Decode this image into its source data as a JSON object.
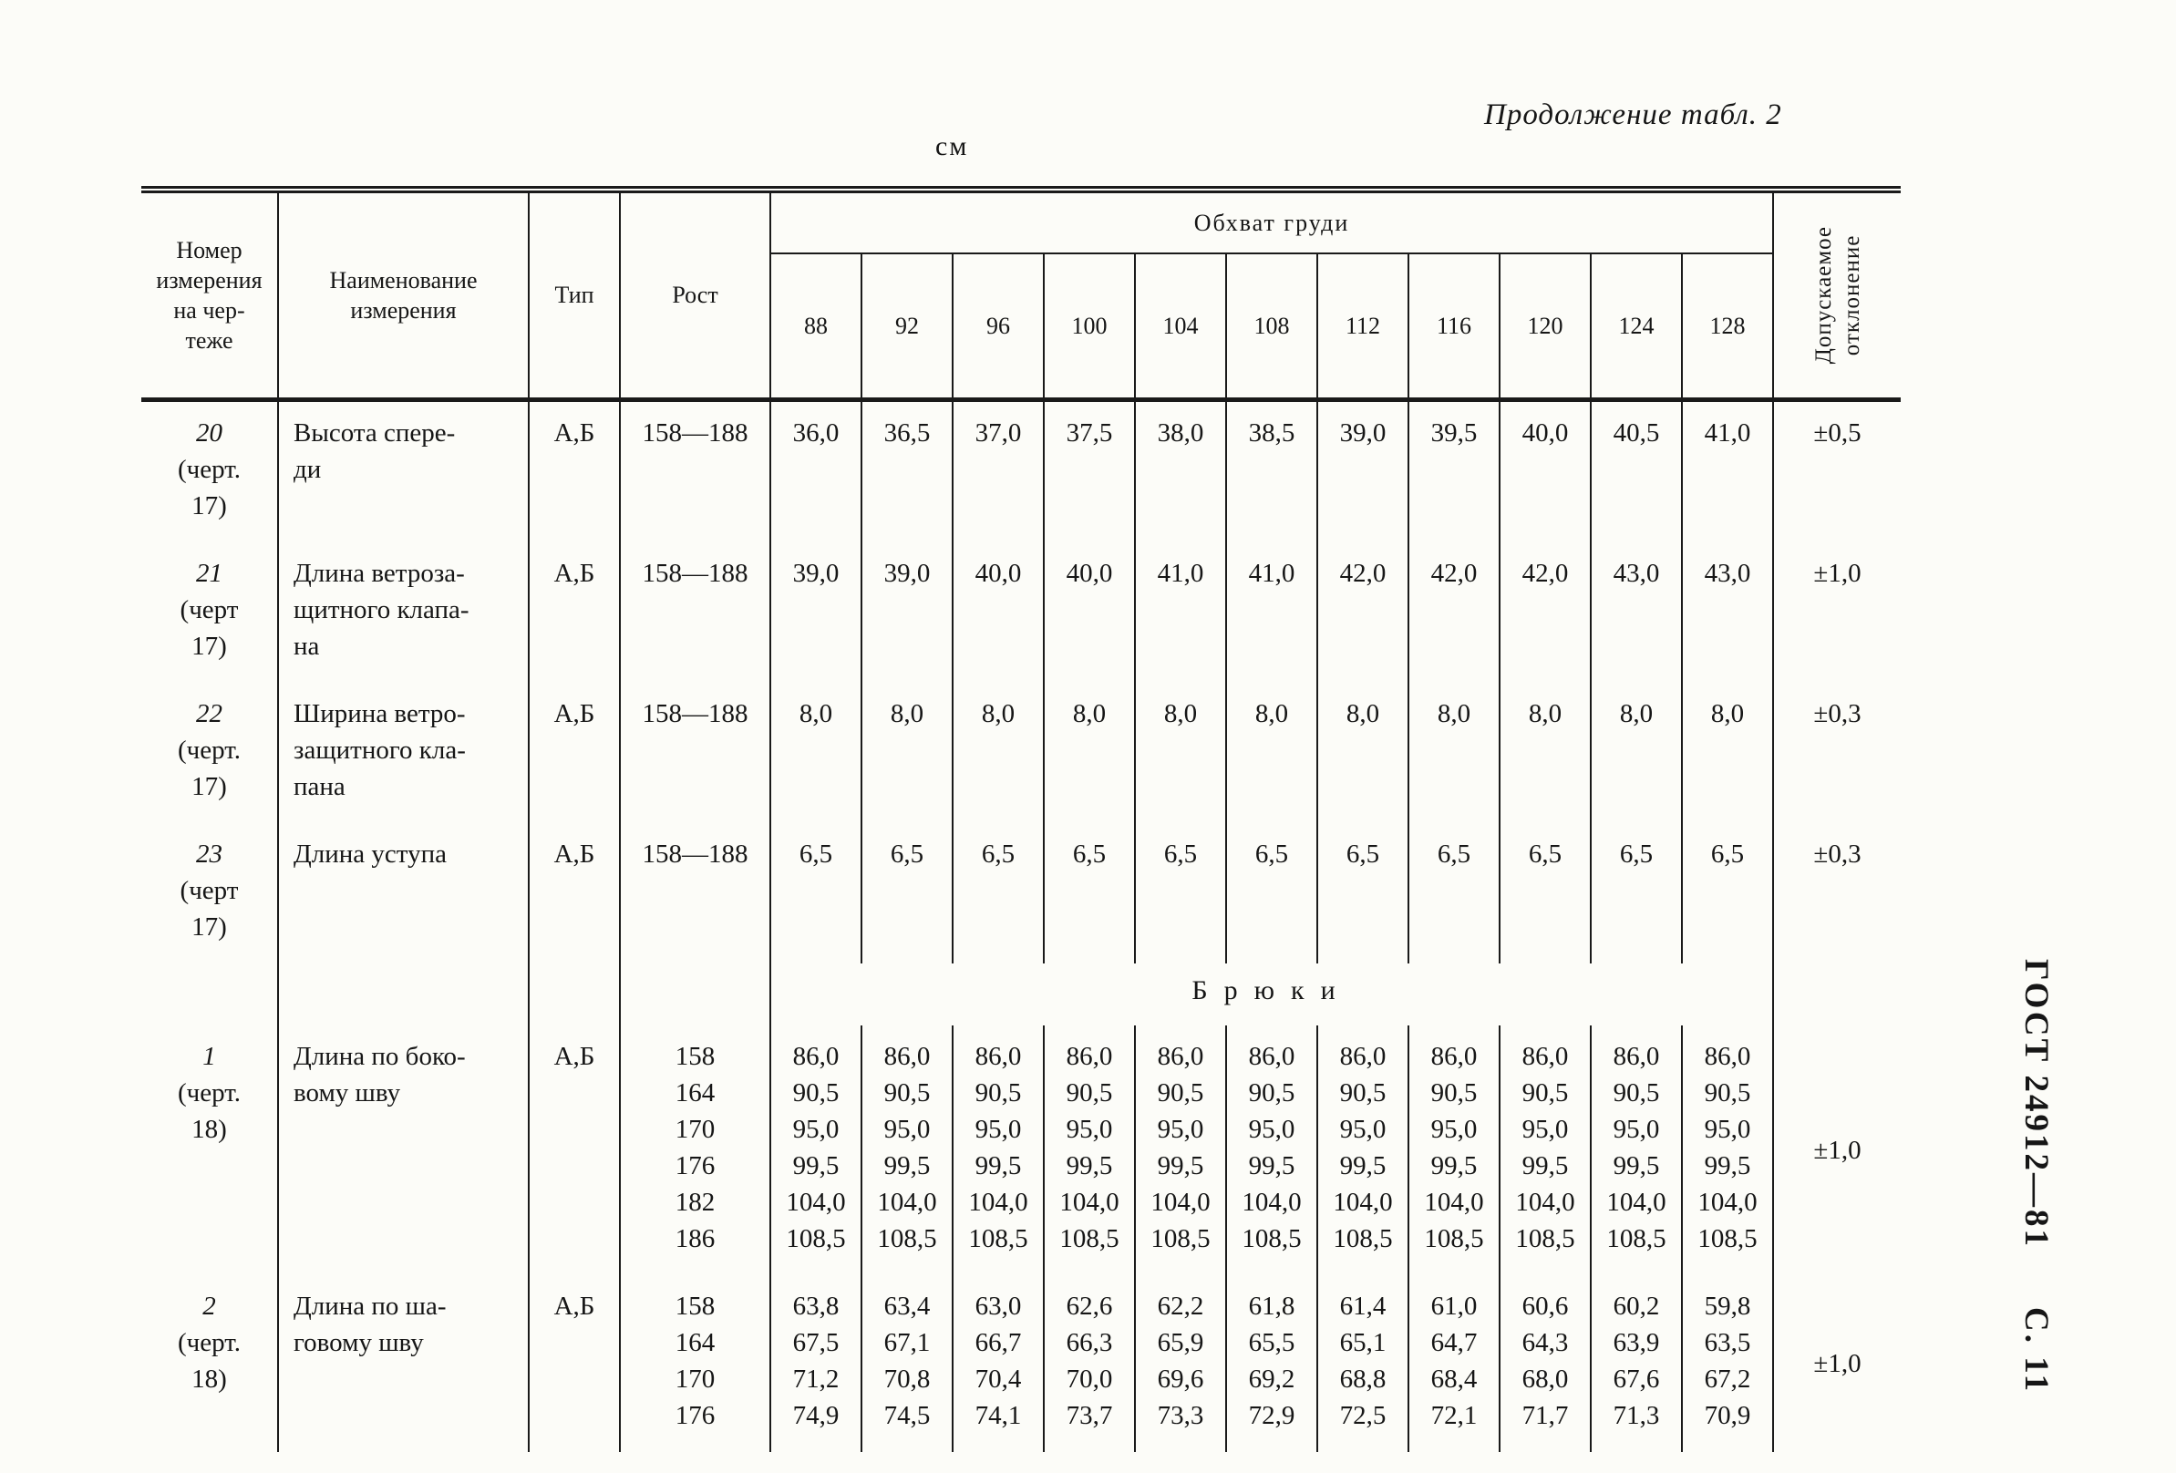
{
  "page": {
    "continuation": "Продолжение табл. 2",
    "units": "см",
    "standard": "ГОСТ 24912—81",
    "page_num": "С. 11"
  },
  "table": {
    "headers": {
      "num": "Номер\nизмерения\nна чер-\nтеже",
      "name": "Наименование\nизмерения",
      "type": "Тип",
      "rost": "Рост",
      "chest_group": "Обхват груди",
      "chest_sizes": [
        "88",
        "92",
        "96",
        "100",
        "104",
        "108",
        "112",
        "116",
        "120",
        "124",
        "128"
      ],
      "deviation": "Допускаемое\nотклонение"
    },
    "rows": [
      {
        "kind": "data",
        "num": "20\n(черт.\n17)",
        "name": "Высота спере-\nди",
        "type": "А,Б",
        "rost": [
          "158—188"
        ],
        "values": [
          [
            "36,0",
            "36,5",
            "37,0",
            "37,5",
            "38,0",
            "38,5",
            "39,0",
            "39,5",
            "40,0",
            "40,5",
            "41,0"
          ]
        ],
        "deviation": "±0,5"
      },
      {
        "kind": "data",
        "num": "21\n(черт\n17)",
        "name": "Длина ветроза-\nщитного клапа-\nна",
        "type": "А,Б",
        "rost": [
          "158—188"
        ],
        "values": [
          [
            "39,0",
            "39,0",
            "40,0",
            "40,0",
            "41,0",
            "41,0",
            "42,0",
            "42,0",
            "42,0",
            "43,0",
            "43,0"
          ]
        ],
        "deviation": "±1,0"
      },
      {
        "kind": "data",
        "num": "22\n(черт.\n17)",
        "name": "Ширина ветро-\nзащитного кла-\nпана",
        "type": "А,Б",
        "rost": [
          "158—188"
        ],
        "values": [
          [
            "8,0",
            "8,0",
            "8,0",
            "8,0",
            "8,0",
            "8,0",
            "8,0",
            "8,0",
            "8,0",
            "8,0",
            "8,0"
          ]
        ],
        "deviation": "±0,3"
      },
      {
        "kind": "data",
        "num": "23\n(черт\n17)",
        "name": "Длина уступа",
        "type": "А,Б",
        "rost": [
          "158—188"
        ],
        "values": [
          [
            "6,5",
            "6,5",
            "6,5",
            "6,5",
            "6,5",
            "6,5",
            "6,5",
            "6,5",
            "6,5",
            "6,5",
            "6,5"
          ]
        ],
        "deviation": "±0,3"
      },
      {
        "kind": "section",
        "label": "Брюки"
      },
      {
        "kind": "data",
        "num": "1\n(черт.\n18)",
        "name": "Длина по боко-\nвому шву",
        "type": "А,Б",
        "rost": [
          "158",
          "164",
          "170",
          "176",
          "182",
          "186"
        ],
        "values": [
          [
            "86,0",
            "86,0",
            "86,0",
            "86,0",
            "86,0",
            "86,0",
            "86,0",
            "86,0",
            "86,0",
            "86,0",
            "86,0"
          ],
          [
            "90,5",
            "90,5",
            "90,5",
            "90,5",
            "90,5",
            "90,5",
            "90,5",
            "90,5",
            "90,5",
            "90,5",
            "90,5"
          ],
          [
            "95,0",
            "95,0",
            "95,0",
            "95,0",
            "95,0",
            "95,0",
            "95,0",
            "95,0",
            "95,0",
            "95,0",
            "95,0"
          ],
          [
            "99,5",
            "99,5",
            "99,5",
            "99,5",
            "99,5",
            "99,5",
            "99,5",
            "99,5",
            "99,5",
            "99,5",
            "99,5"
          ],
          [
            "104,0",
            "104,0",
            "104,0",
            "104,0",
            "104,0",
            "104,0",
            "104,0",
            "104,0",
            "104,0",
            "104,0",
            "104,0"
          ],
          [
            "108,5",
            "108,5",
            "108,5",
            "108,5",
            "108,5",
            "108,5",
            "108,5",
            "108,5",
            "108,5",
            "108,5",
            "108,5"
          ]
        ],
        "deviation": "±1,0"
      },
      {
        "kind": "data",
        "num": "2\n(черт.\n18)",
        "name": "Длина по ша-\nговому шву",
        "type": "А,Б",
        "rost": [
          "158",
          "164",
          "170",
          "176"
        ],
        "values": [
          [
            "63,8",
            "63,4",
            "63,0",
            "62,6",
            "62,2",
            "61,8",
            "61,4",
            "61,0",
            "60,6",
            "60,2",
            "59,8"
          ],
          [
            "67,5",
            "67,1",
            "66,7",
            "66,3",
            "65,9",
            "65,5",
            "65,1",
            "64,7",
            "64,3",
            "63,9",
            "63,5"
          ],
          [
            "71,2",
            "70,8",
            "70,4",
            "70,0",
            "69,6",
            "69,2",
            "68,8",
            "68,4",
            "68,0",
            "67,6",
            "67,2"
          ],
          [
            "74,9",
            "74,5",
            "74,1",
            "73,7",
            "73,3",
            "72,9",
            "72,5",
            "72,1",
            "71,7",
            "71,3",
            "70,9"
          ]
        ],
        "deviation": "±1,0"
      }
    ]
  }
}
